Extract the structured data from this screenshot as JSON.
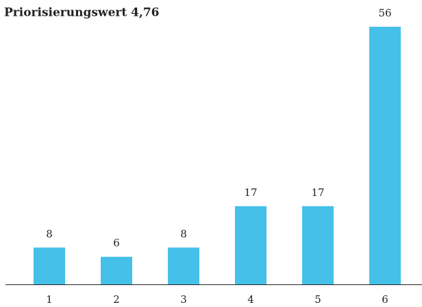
{
  "chart_data": {
    "type": "bar",
    "title": "Priorisierungswert 4,76",
    "categories": [
      "1",
      "2",
      "3",
      "4",
      "5",
      "6"
    ],
    "values": [
      8,
      6,
      8,
      17,
      17,
      56
    ],
    "color": "#45c0e8"
  }
}
